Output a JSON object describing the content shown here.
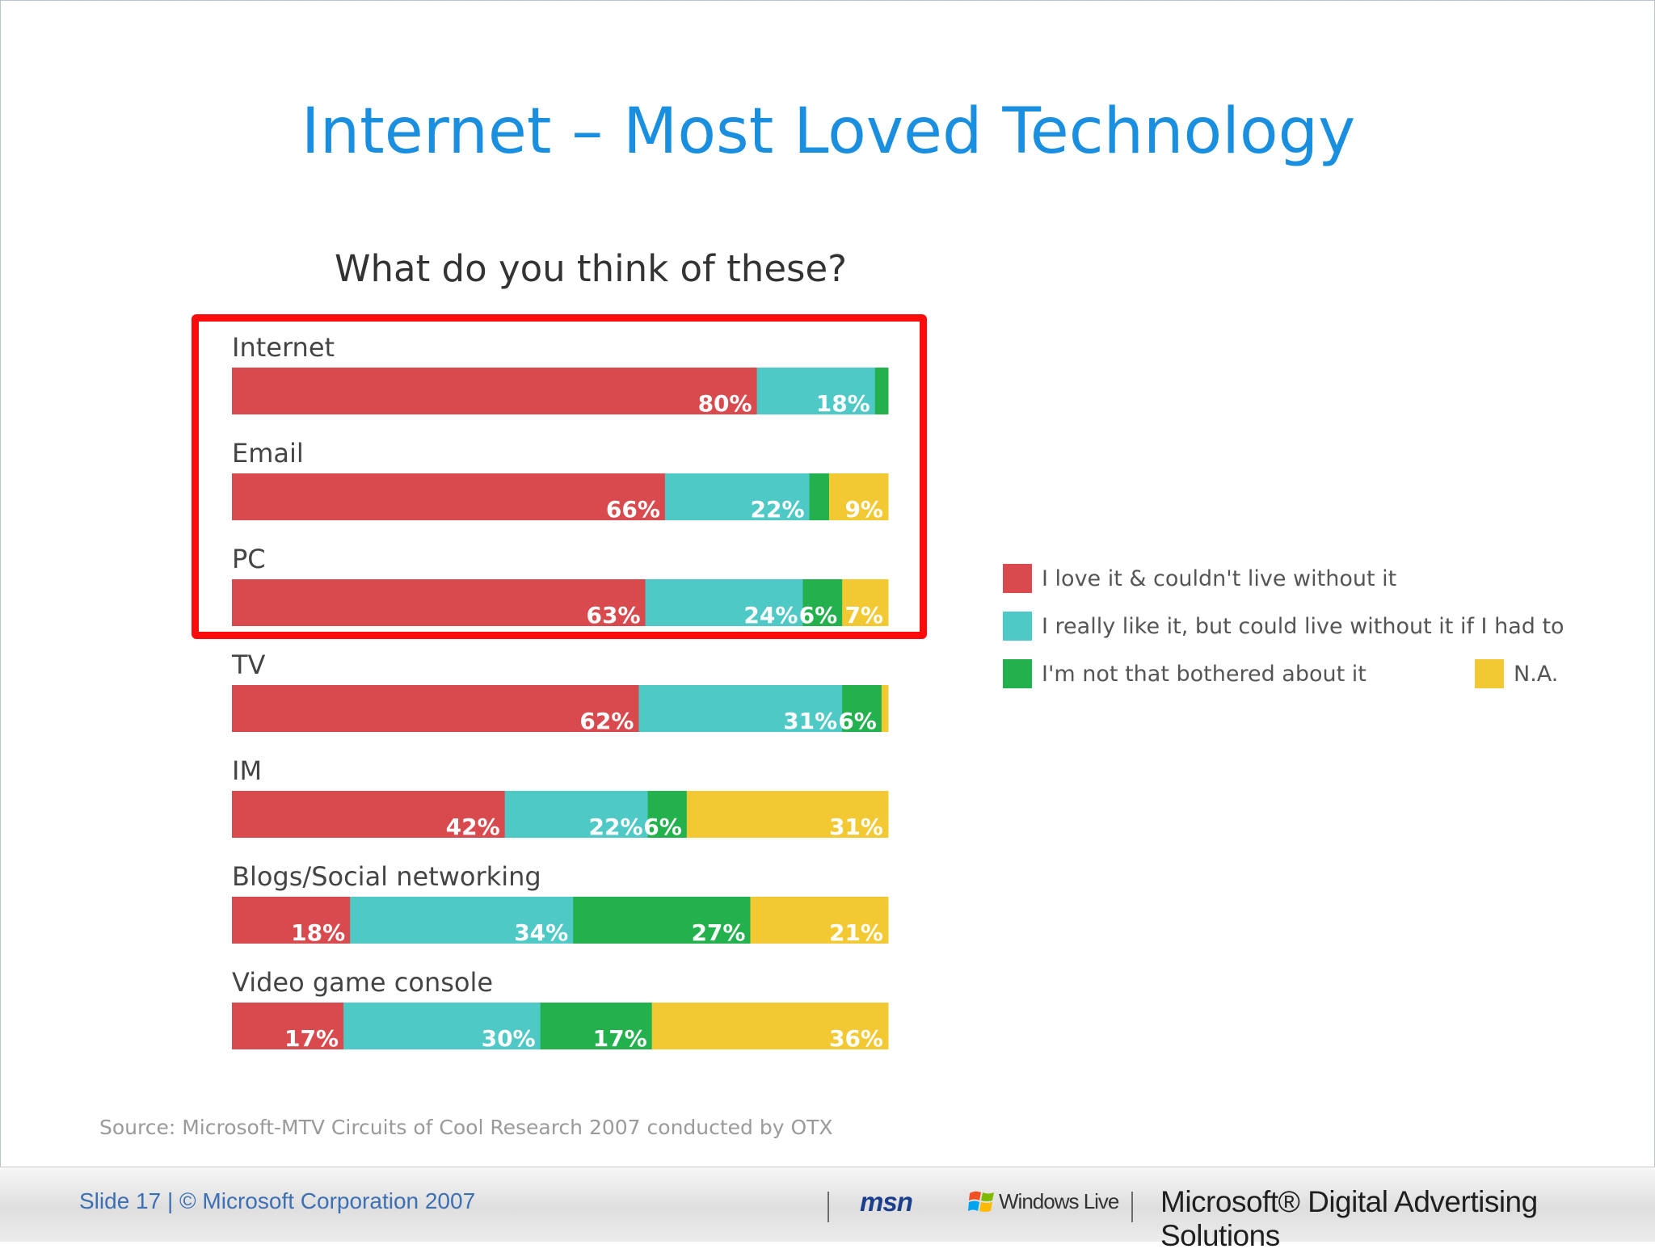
{
  "slide": {
    "title": "Internet – Most Loved Technology",
    "question": "What do you think of these?",
    "source": "Source: Microsoft-MTV Circuits of Cool Research 2007 conducted by OTX"
  },
  "footer": {
    "slide_text": "Slide 17 | © Microsoft Corporation 2007",
    "logo_msn": "msn",
    "logo_windows_live": "Windows Live",
    "logo_microsoft": "Microsoft® Digital Advertising Solutions"
  },
  "colors": {
    "love": "#d94a4e",
    "like": "#4ec9c6",
    "not_bothered": "#22b14c",
    "na": "#f2c933",
    "title": "#1a8fe0",
    "highlight": "#ff0b0b"
  },
  "chart_data": {
    "type": "bar",
    "orientation": "horizontal",
    "stacked": true,
    "title": "What do you think of these?",
    "categories": [
      "Internet",
      "Email",
      "PC",
      "TV",
      "IM",
      "Blogs/Social networking",
      "Video game console"
    ],
    "series": [
      {
        "name": "I love it & couldn't live without it",
        "values": [
          80,
          66,
          63,
          62,
          42,
          18,
          17
        ],
        "labels": [
          "80%",
          "66%",
          "63%",
          "62%",
          "42%",
          "18%",
          "17%"
        ]
      },
      {
        "name": "I really like it, but could live without it if I had to",
        "values": [
          18,
          22,
          24,
          31,
          22,
          34,
          30
        ],
        "labels": [
          "18%",
          "22%",
          "24%",
          "31%",
          "22%",
          "34%",
          "30%"
        ]
      },
      {
        "name": "I'm not that bothered about it",
        "values": [
          2,
          3,
          6,
          6,
          6,
          27,
          17
        ],
        "labels": [
          "",
          "",
          "6%",
          "6%",
          "6%",
          "27%",
          "17%"
        ]
      },
      {
        "name": "N.A.",
        "values": [
          0,
          9,
          7,
          1,
          31,
          21,
          36
        ],
        "labels": [
          "",
          "9%",
          "7%",
          "",
          "31%",
          "21%",
          "36%"
        ]
      }
    ],
    "unit": "%",
    "legend_position": "right",
    "highlighted_categories": [
      "Internet",
      "Email",
      "PC"
    ]
  }
}
